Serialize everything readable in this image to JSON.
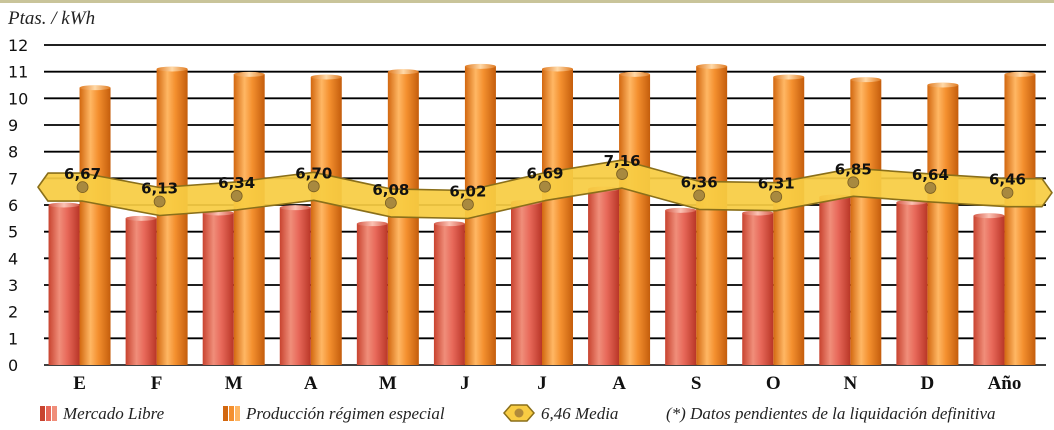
{
  "chart_data": {
    "type": "bar",
    "ylabel": "Ptas. / kWh",
    "ylim": [
      0,
      12
    ],
    "yticks": [
      0,
      1,
      2,
      3,
      4,
      5,
      6,
      7,
      8,
      9,
      10,
      11,
      12
    ],
    "grid": true,
    "categories": [
      "E",
      "F",
      "M",
      "A",
      "M",
      "J",
      "J",
      "A",
      "S",
      "O",
      "N",
      "D",
      "Año"
    ],
    "series": [
      {
        "name": "Mercado Libre",
        "values": [
          6.0,
          5.5,
          5.7,
          5.9,
          5.3,
          5.3,
          6.1,
          6.6,
          5.8,
          5.7,
          6.3,
          6.1,
          5.6
        ],
        "color": "#e8695a"
      },
      {
        "name": "Producción régimen especial",
        "values": [
          10.4,
          11.1,
          10.9,
          10.8,
          11.0,
          11.2,
          11.1,
          10.9,
          11.2,
          10.8,
          10.7,
          10.5,
          10.9
        ],
        "color": "#f4902f"
      }
    ],
    "media": {
      "values": [
        6.67,
        6.13,
        6.34,
        6.7,
        6.08,
        6.02,
        6.69,
        7.16,
        6.36,
        6.31,
        6.85,
        6.64,
        6.46
      ],
      "labels": [
        "6,67",
        "6,13",
        "6,34",
        "6,70",
        "6,08",
        "6,02",
        "6,69",
        "7,16",
        "6,36",
        "6,31",
        "6,85",
        "6,64",
        "6,46"
      ],
      "color": "#f8cc43"
    },
    "legend": {
      "placement": "bottom",
      "mercado": "Mercado Libre",
      "produccion": "Producción régimen especial",
      "media": "6,46 Media",
      "note": "(*) Datos pendientes de la liquidación definitiva"
    }
  }
}
